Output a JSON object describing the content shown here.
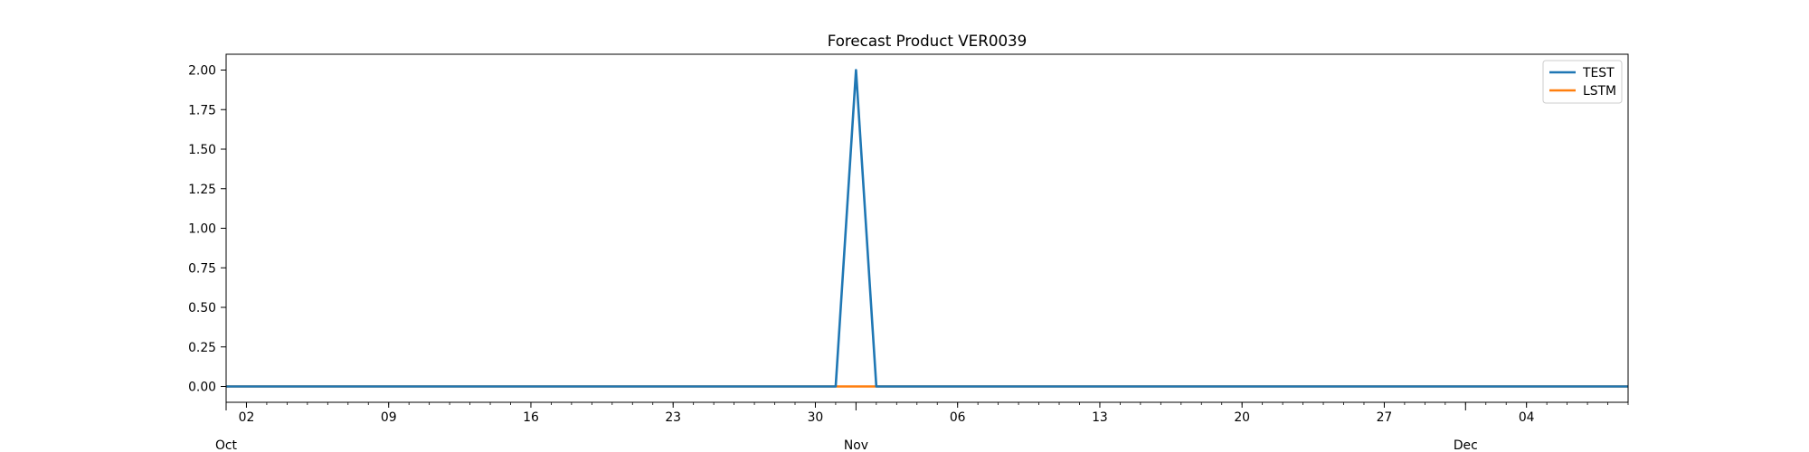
{
  "chart_data": {
    "type": "line",
    "title": "Forecast Product VER0039",
    "xlabel": "",
    "ylabel": "",
    "x_start": "2023-10-01",
    "x_end": "2023-12-09",
    "ylim": [
      -0.1,
      2.1
    ],
    "y_ticks": [
      "0.00",
      "0.25",
      "0.50",
      "0.75",
      "1.00",
      "1.25",
      "1.50",
      "1.75",
      "2.00"
    ],
    "x_minor_tick_labels": [
      {
        "date": "2023-10-02",
        "label": "02"
      },
      {
        "date": "2023-10-09",
        "label": "09"
      },
      {
        "date": "2023-10-16",
        "label": "16"
      },
      {
        "date": "2023-10-23",
        "label": "23"
      },
      {
        "date": "2023-10-30",
        "label": "30"
      },
      {
        "date": "2023-11-06",
        "label": "06"
      },
      {
        "date": "2023-11-13",
        "label": "13"
      },
      {
        "date": "2023-11-20",
        "label": "20"
      },
      {
        "date": "2023-11-27",
        "label": "27"
      },
      {
        "date": "2023-12-04",
        "label": "04"
      }
    ],
    "x_major_tick_labels": [
      {
        "date": "2023-10-01",
        "label": "Oct"
      },
      {
        "date": "2023-11-01",
        "label": "Nov"
      },
      {
        "date": "2023-12-01",
        "label": "Dec"
      }
    ],
    "grid": false,
    "legend_position": "top-right",
    "series": [
      {
        "name": "TEST",
        "color": "#1f77b4",
        "points": [
          {
            "x": "2023-10-01",
            "y": 0
          },
          {
            "x": "2023-10-31",
            "y": 0
          },
          {
            "x": "2023-11-01",
            "y": 2
          },
          {
            "x": "2023-11-02",
            "y": 0
          },
          {
            "x": "2023-12-09",
            "y": 0
          }
        ]
      },
      {
        "name": "LSTM",
        "color": "#ff7f0e",
        "points": [
          {
            "x": "2023-10-01",
            "y": 0
          },
          {
            "x": "2023-12-09",
            "y": 0
          }
        ]
      }
    ]
  }
}
